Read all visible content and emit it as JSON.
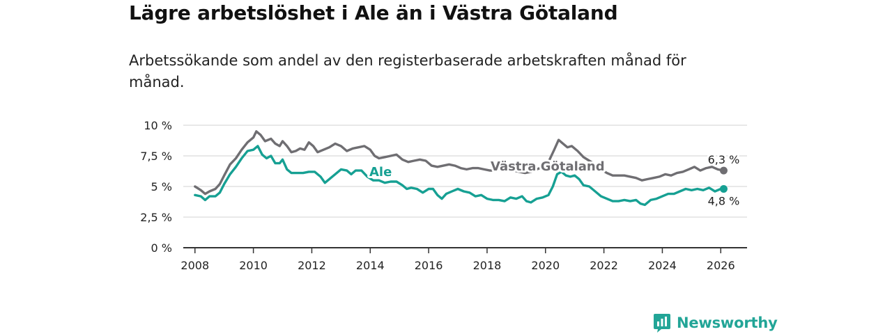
{
  "title": "Lägre arbetslöshet i Ale än i Västra Götaland",
  "subtitle": "Arbetssökande som andel av den registerbaserade arbetskraften månad för månad.",
  "brand": {
    "name": "Newsworthy",
    "icon": "newsworthy-chart-icon"
  },
  "colors": {
    "vg": "#6f6e72",
    "ale": "#16a093",
    "grid": "#d9d9d9",
    "axis": "#333333"
  },
  "chart_data": {
    "type": "line",
    "title": "Lägre arbetslöshet i Ale än i Västra Götaland",
    "xlabel": "",
    "ylabel": "",
    "xlim": [
      2007.6,
      2026.9
    ],
    "ylim": [
      0,
      10
    ],
    "grid": true,
    "x_ticks": [
      2008,
      2010,
      2012,
      2014,
      2016,
      2018,
      2020,
      2022,
      2024,
      2026
    ],
    "x_tick_labels": [
      "2008",
      "2010",
      "2012",
      "2014",
      "2016",
      "2018",
      "2020",
      "2022",
      "2024",
      "2026"
    ],
    "y_ticks": [
      0,
      2.5,
      5,
      7.5,
      10
    ],
    "y_tick_labels": [
      "0 %",
      "2,5 %",
      "5 %",
      "7,5 %",
      "10 %"
    ],
    "series": [
      {
        "name": "Västra Götaland",
        "color": "#6f6e72",
        "end_label": "6,3 %",
        "points": [
          [
            2008.0,
            5.0
          ],
          [
            2008.2,
            4.7
          ],
          [
            2008.35,
            4.4
          ],
          [
            2008.5,
            4.6
          ],
          [
            2008.7,
            4.8
          ],
          [
            2008.85,
            5.2
          ],
          [
            2009.0,
            5.9
          ],
          [
            2009.2,
            6.8
          ],
          [
            2009.4,
            7.3
          ],
          [
            2009.6,
            8.0
          ],
          [
            2009.8,
            8.6
          ],
          [
            2010.0,
            9.0
          ],
          [
            2010.1,
            9.5
          ],
          [
            2010.25,
            9.2
          ],
          [
            2010.4,
            8.7
          ],
          [
            2010.6,
            8.9
          ],
          [
            2010.75,
            8.5
          ],
          [
            2010.9,
            8.3
          ],
          [
            2011.0,
            8.7
          ],
          [
            2011.15,
            8.3
          ],
          [
            2011.3,
            7.8
          ],
          [
            2011.45,
            7.9
          ],
          [
            2011.6,
            8.1
          ],
          [
            2011.75,
            8.0
          ],
          [
            2011.9,
            8.6
          ],
          [
            2012.05,
            8.3
          ],
          [
            2012.2,
            7.8
          ],
          [
            2012.4,
            8.0
          ],
          [
            2012.6,
            8.2
          ],
          [
            2012.8,
            8.5
          ],
          [
            2013.0,
            8.3
          ],
          [
            2013.2,
            7.9
          ],
          [
            2013.4,
            8.1
          ],
          [
            2013.6,
            8.2
          ],
          [
            2013.8,
            8.3
          ],
          [
            2014.0,
            8.0
          ],
          [
            2014.15,
            7.5
          ],
          [
            2014.3,
            7.3
          ],
          [
            2014.5,
            7.4
          ],
          [
            2014.7,
            7.5
          ],
          [
            2014.9,
            7.6
          ],
          [
            2015.1,
            7.2
          ],
          [
            2015.3,
            7.0
          ],
          [
            2015.5,
            7.1
          ],
          [
            2015.7,
            7.2
          ],
          [
            2015.9,
            7.1
          ],
          [
            2016.1,
            6.7
          ],
          [
            2016.3,
            6.6
          ],
          [
            2016.5,
            6.7
          ],
          [
            2016.7,
            6.8
          ],
          [
            2016.9,
            6.7
          ],
          [
            2017.1,
            6.5
          ],
          [
            2017.3,
            6.4
          ],
          [
            2017.5,
            6.5
          ],
          [
            2017.7,
            6.5
          ],
          [
            2017.9,
            6.4
          ],
          [
            2018.1,
            6.3
          ],
          [
            2018.3,
            6.3
          ],
          [
            2018.5,
            6.4
          ],
          [
            2018.7,
            6.3
          ],
          [
            2018.9,
            6.3
          ],
          [
            2019.1,
            6.2
          ],
          [
            2019.3,
            6.1
          ],
          [
            2019.5,
            6.2
          ],
          [
            2019.7,
            6.4
          ],
          [
            2019.9,
            6.6
          ],
          [
            2020.1,
            7.0
          ],
          [
            2020.3,
            8.0
          ],
          [
            2020.45,
            8.8
          ],
          [
            2020.6,
            8.5
          ],
          [
            2020.75,
            8.2
          ],
          [
            2020.9,
            8.3
          ],
          [
            2021.1,
            7.9
          ],
          [
            2021.3,
            7.4
          ],
          [
            2021.5,
            7.1
          ],
          [
            2021.7,
            6.8
          ],
          [
            2021.9,
            6.4
          ],
          [
            2022.1,
            6.1
          ],
          [
            2022.3,
            5.9
          ],
          [
            2022.5,
            5.9
          ],
          [
            2022.7,
            5.9
          ],
          [
            2022.9,
            5.8
          ],
          [
            2023.1,
            5.7
          ],
          [
            2023.3,
            5.5
          ],
          [
            2023.5,
            5.6
          ],
          [
            2023.7,
            5.7
          ],
          [
            2023.9,
            5.8
          ],
          [
            2024.1,
            6.0
          ],
          [
            2024.3,
            5.9
          ],
          [
            2024.5,
            6.1
          ],
          [
            2024.7,
            6.2
          ],
          [
            2024.9,
            6.4
          ],
          [
            2025.1,
            6.6
          ],
          [
            2025.3,
            6.3
          ],
          [
            2025.5,
            6.5
          ],
          [
            2025.7,
            6.6
          ],
          [
            2025.9,
            6.4
          ],
          [
            2026.1,
            6.3
          ]
        ]
      },
      {
        "name": "Ale",
        "color": "#16a093",
        "end_label": "4,8 %",
        "points": [
          [
            2008.0,
            4.3
          ],
          [
            2008.2,
            4.2
          ],
          [
            2008.35,
            3.9
          ],
          [
            2008.5,
            4.2
          ],
          [
            2008.7,
            4.2
          ],
          [
            2008.85,
            4.5
          ],
          [
            2009.0,
            5.2
          ],
          [
            2009.2,
            6.0
          ],
          [
            2009.4,
            6.6
          ],
          [
            2009.6,
            7.3
          ],
          [
            2009.8,
            7.9
          ],
          [
            2010.0,
            8.0
          ],
          [
            2010.15,
            8.3
          ],
          [
            2010.3,
            7.6
          ],
          [
            2010.45,
            7.3
          ],
          [
            2010.6,
            7.5
          ],
          [
            2010.75,
            6.9
          ],
          [
            2010.9,
            6.9
          ],
          [
            2011.0,
            7.2
          ],
          [
            2011.15,
            6.4
          ],
          [
            2011.3,
            6.1
          ],
          [
            2011.5,
            6.1
          ],
          [
            2011.7,
            6.1
          ],
          [
            2011.9,
            6.2
          ],
          [
            2012.1,
            6.2
          ],
          [
            2012.3,
            5.8
          ],
          [
            2012.45,
            5.3
          ],
          [
            2012.6,
            5.6
          ],
          [
            2012.8,
            6.0
          ],
          [
            2013.0,
            6.4
          ],
          [
            2013.2,
            6.3
          ],
          [
            2013.35,
            6.0
          ],
          [
            2013.5,
            6.3
          ],
          [
            2013.7,
            6.3
          ],
          [
            2013.9,
            5.8
          ],
          [
            2014.1,
            5.5
          ],
          [
            2014.3,
            5.5
          ],
          [
            2014.5,
            5.3
          ],
          [
            2014.7,
            5.4
          ],
          [
            2014.9,
            5.4
          ],
          [
            2015.1,
            5.1
          ],
          [
            2015.25,
            4.8
          ],
          [
            2015.4,
            4.9
          ],
          [
            2015.6,
            4.8
          ],
          [
            2015.8,
            4.5
          ],
          [
            2016.0,
            4.8
          ],
          [
            2016.15,
            4.8
          ],
          [
            2016.3,
            4.3
          ],
          [
            2016.45,
            4.0
          ],
          [
            2016.6,
            4.4
          ],
          [
            2016.8,
            4.6
          ],
          [
            2017.0,
            4.8
          ],
          [
            2017.2,
            4.6
          ],
          [
            2017.4,
            4.5
          ],
          [
            2017.6,
            4.2
          ],
          [
            2017.8,
            4.3
          ],
          [
            2018.0,
            4.0
          ],
          [
            2018.2,
            3.9
          ],
          [
            2018.4,
            3.9
          ],
          [
            2018.6,
            3.8
          ],
          [
            2018.8,
            4.1
          ],
          [
            2019.0,
            4.0
          ],
          [
            2019.2,
            4.2
          ],
          [
            2019.35,
            3.8
          ],
          [
            2019.5,
            3.7
          ],
          [
            2019.7,
            4.0
          ],
          [
            2019.9,
            4.1
          ],
          [
            2020.1,
            4.3
          ],
          [
            2020.25,
            5.0
          ],
          [
            2020.4,
            6.0
          ],
          [
            2020.55,
            6.2
          ],
          [
            2020.7,
            5.9
          ],
          [
            2020.85,
            5.8
          ],
          [
            2021.0,
            5.9
          ],
          [
            2021.15,
            5.6
          ],
          [
            2021.3,
            5.1
          ],
          [
            2021.5,
            5.0
          ],
          [
            2021.7,
            4.6
          ],
          [
            2021.9,
            4.2
          ],
          [
            2022.1,
            4.0
          ],
          [
            2022.3,
            3.8
          ],
          [
            2022.5,
            3.8
          ],
          [
            2022.7,
            3.9
          ],
          [
            2022.9,
            3.8
          ],
          [
            2023.1,
            3.9
          ],
          [
            2023.25,
            3.6
          ],
          [
            2023.4,
            3.5
          ],
          [
            2023.6,
            3.9
          ],
          [
            2023.8,
            4.0
          ],
          [
            2024.0,
            4.2
          ],
          [
            2024.2,
            4.4
          ],
          [
            2024.4,
            4.4
          ],
          [
            2024.6,
            4.6
          ],
          [
            2024.8,
            4.8
          ],
          [
            2025.0,
            4.7
          ],
          [
            2025.2,
            4.8
          ],
          [
            2025.4,
            4.7
          ],
          [
            2025.6,
            4.9
          ],
          [
            2025.8,
            4.6
          ],
          [
            2026.0,
            4.8
          ],
          [
            2026.1,
            4.8
          ]
        ]
      }
    ],
    "annotations": [
      "Ale",
      "Västra Götaland"
    ]
  }
}
